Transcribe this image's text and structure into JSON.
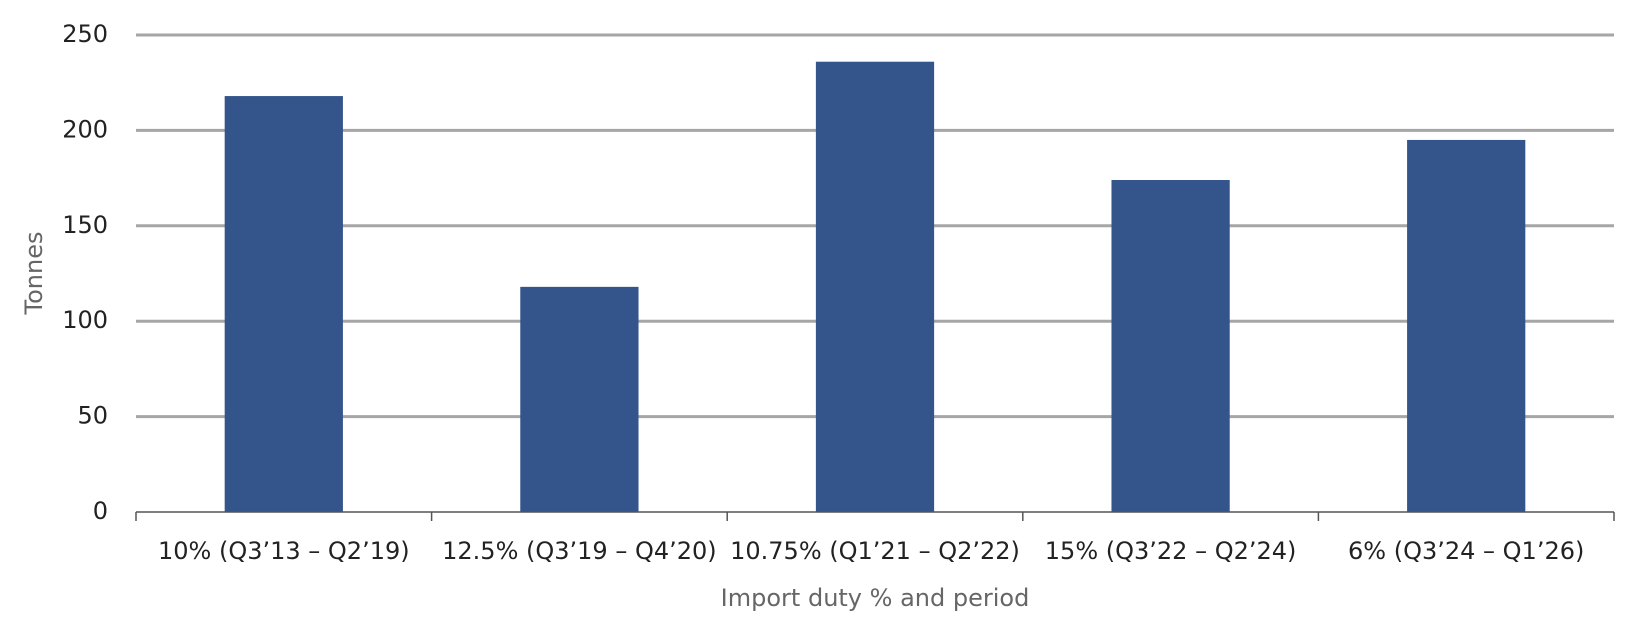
{
  "chart_data": {
    "type": "bar",
    "y_label": "Tonnes",
    "x_label": "Import duty % and period",
    "categories": [
      "10% (Q3’13 – Q2’19)",
      "12.5% (Q3’19 – Q4’20)",
      "10.75% (Q1’21 – Q2’22)",
      "15% (Q3’22 – Q2’24)",
      "6% (Q3’24 – Q1’26)"
    ],
    "values": [
      218,
      118,
      236,
      174,
      195
    ],
    "color": "#34558b",
    "ylim": [
      0,
      250
    ],
    "yticks": [
      0,
      50,
      100,
      150,
      200,
      250
    ],
    "grid": true
  }
}
